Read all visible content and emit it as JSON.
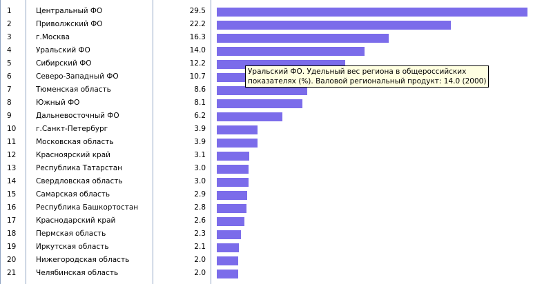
{
  "chart_data": {
    "type": "bar",
    "orientation": "horizontal",
    "ranks": [
      "1",
      "2",
      "3",
      "4",
      "5",
      "6",
      "7",
      "8",
      "9",
      "10",
      "11",
      "12",
      "13",
      "14",
      "15",
      "16",
      "17",
      "18",
      "19",
      "20",
      "21"
    ],
    "categories": [
      "Центральный ФО",
      "Приволжский ФО",
      "г.Москва",
      "Уральский ФО",
      "Сибирский ФО",
      "Северо-Западный ФО",
      "Тюменская область",
      "Южный ФО",
      "Дальневосточный ФО",
      "г.Санкт-Петербург",
      "Московская область",
      "Красноярский край",
      "Республика Татарстан",
      "Свердловская область",
      "Самарская область",
      "Республика Башкортостан",
      "Краснодарский край",
      "Пермская область",
      "Иркутская область",
      "Нижегородская область",
      "Челябинская область"
    ],
    "values": [
      29.5,
      22.2,
      16.3,
      14.0,
      12.2,
      10.7,
      8.6,
      8.1,
      6.2,
      3.9,
      3.9,
      3.1,
      3.0,
      3.0,
      2.9,
      2.8,
      2.6,
      2.3,
      2.1,
      2.0,
      2.0
    ],
    "value_labels": [
      "29.5",
      "22.2",
      "16.3",
      "14.0",
      "12.2",
      "10.7",
      "8.6",
      "8.1",
      "6.2",
      "3.9",
      "3.9",
      "3.1",
      "3.0",
      "3.0",
      "2.9",
      "2.8",
      "2.6",
      "2.3",
      "2.1",
      "2.0",
      "2.0"
    ],
    "xlim": [
      0,
      29.5
    ],
    "bar_color": "#7b6cea",
    "grid": false
  },
  "tooltip": {
    "line1": "Уральский ФО. Удельный вес региона в общероссийских",
    "line2": "показателях (%). Валовой региональный продукт: 14.0 (2000)"
  }
}
